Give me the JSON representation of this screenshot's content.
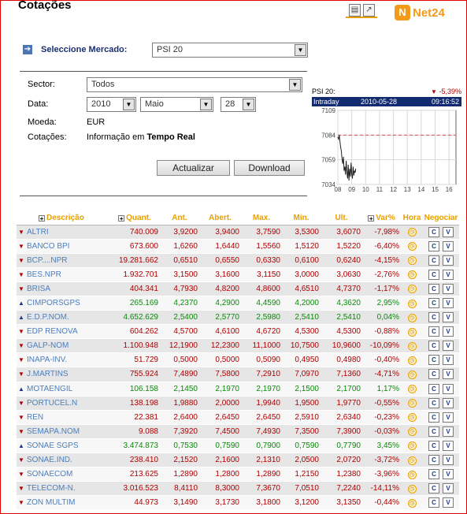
{
  "header": {
    "title": "Cotações",
    "brand": "Net24",
    "icon_print": "print-icon",
    "icon_export": "export-icon"
  },
  "market": {
    "label": "Seleccione Mercado:",
    "value": "PSI 20"
  },
  "filters": {
    "sector_label": "Sector:",
    "sector_value": "Todos",
    "date_label": "Data:",
    "year": "2010",
    "month": "Maio",
    "day": "28",
    "currency_label": "Moeda:",
    "currency_value": "EUR",
    "quotes_label": "Cotações:",
    "quotes_text": "Informação em",
    "quotes_strong": "Tempo Real"
  },
  "buttons": {
    "refresh": "Actualizar",
    "download": "Download"
  },
  "mini_chart": {
    "index_name": "PSI 20:",
    "change": "-5,39%",
    "mode": "Intraday",
    "date": "2010-05-28",
    "time": "09:16:52",
    "colors": {
      "down": "#c00000",
      "line": "#222222",
      "ref": "#e05050"
    },
    "chart_data": {
      "type": "line",
      "x_ticks": [
        "08",
        "09",
        "10",
        "11",
        "12",
        "13",
        "14",
        "15",
        "16"
      ],
      "y_ticks": [
        "7109",
        "7084",
        "7059",
        "7034"
      ],
      "ylim": [
        7034,
        7109
      ],
      "xlim": [
        8,
        16.5
      ],
      "reference_line": 7084,
      "series": [
        {
          "x": [
            8.0,
            8.05,
            8.1,
            8.15,
            8.2,
            8.25,
            8.3,
            8.35,
            8.4,
            8.45,
            8.5,
            8.55,
            8.6,
            8.65,
            8.7,
            8.75,
            8.8,
            8.85,
            8.9,
            8.95,
            9.0,
            9.05,
            9.1,
            9.15,
            9.2,
            9.25,
            9.28
          ],
          "y": [
            7082,
            7080,
            7084,
            7078,
            7072,
            7068,
            7060,
            7055,
            7062,
            7048,
            7052,
            7044,
            7058,
            7046,
            7040,
            7054,
            7038,
            7050,
            7042,
            7056,
            7045,
            7040,
            7052,
            7043,
            7048,
            7046,
            7050
          ]
        }
      ]
    }
  },
  "table": {
    "headers": {
      "desc": "Descrição",
      "qty": "Quant.",
      "prev": "Ant.",
      "open": "Abert.",
      "max": "Max.",
      "min": "Min.",
      "last": "Ult.",
      "var": "Var%",
      "time": "Hora",
      "trade": "Negociar"
    },
    "buy_label": "C",
    "sell_label": "V",
    "colors": {
      "down": "#b00000",
      "up": "#0a8a0a",
      "up_icon": "#1a3b8c",
      "down_icon": "#b00000"
    },
    "rows": [
      {
        "name": "ALTRI",
        "dir": "down",
        "qty": "740.009",
        "prev": "3,9200",
        "open": "3,9400",
        "max": "3,7590",
        "min": "3,5300",
        "last": "3,6070",
        "var": "-7,98%"
      },
      {
        "name": "BANCO BPI",
        "dir": "down",
        "qty": "673.600",
        "prev": "1,6260",
        "open": "1,6440",
        "max": "1,5560",
        "min": "1,5120",
        "last": "1,5220",
        "var": "-6,40%"
      },
      {
        "name": "BCP....NPR",
        "dir": "down",
        "qty": "19.281.662",
        "prev": "0,6510",
        "open": "0,6550",
        "max": "0,6330",
        "min": "0,6100",
        "last": "0,6240",
        "var": "-4,15%"
      },
      {
        "name": "BES.NPR",
        "dir": "down",
        "qty": "1.932.701",
        "prev": "3,1500",
        "open": "3,1600",
        "max": "3,1150",
        "min": "3,0000",
        "last": "3,0630",
        "var": "-2,76%"
      },
      {
        "name": "BRISA",
        "dir": "down",
        "qty": "404.341",
        "prev": "4,7930",
        "open": "4,8200",
        "max": "4,8600",
        "min": "4,6510",
        "last": "4,7370",
        "var": "-1,17%"
      },
      {
        "name": "CIMPORSGPS",
        "dir": "up",
        "qty": "265.169",
        "prev": "4,2370",
        "open": "4,2900",
        "max": "4,4590",
        "min": "4,2000",
        "last": "4,3620",
        "var": "2,95%"
      },
      {
        "name": "E.D.P.NOM.",
        "dir": "up",
        "qty": "4.652.629",
        "prev": "2,5400",
        "open": "2,5770",
        "max": "2,5980",
        "min": "2,5410",
        "last": "2,5410",
        "var": "0,04%"
      },
      {
        "name": "EDP RENOVA",
        "dir": "down",
        "qty": "604.262",
        "prev": "4,5700",
        "open": "4,6100",
        "max": "4,6720",
        "min": "4,5300",
        "last": "4,5300",
        "var": "-0,88%"
      },
      {
        "name": "GALP-NOM",
        "dir": "down",
        "qty": "1.100.948",
        "prev": "12,1900",
        "open": "12,2300",
        "max": "11,1000",
        "min": "10,7500",
        "last": "10,9600",
        "var": "-10,09%"
      },
      {
        "name": "INAPA-INV.",
        "dir": "down",
        "qty": "51.729",
        "prev": "0,5000",
        "open": "0,5000",
        "max": "0,5090",
        "min": "0,4950",
        "last": "0,4980",
        "var": "-0,40%"
      },
      {
        "name": "J.MARTINS",
        "dir": "down",
        "qty": "755.924",
        "prev": "7,4890",
        "open": "7,5800",
        "max": "7,2910",
        "min": "7,0970",
        "last": "7,1360",
        "var": "-4,71%"
      },
      {
        "name": "MOTAENGIL",
        "dir": "up",
        "qty": "106.158",
        "prev": "2,1450",
        "open": "2,1970",
        "max": "2,1970",
        "min": "2,1500",
        "last": "2,1700",
        "var": "1,17%"
      },
      {
        "name": "PORTUCEL.N",
        "dir": "down",
        "qty": "138.198",
        "prev": "1,9880",
        "open": "2,0000",
        "max": "1,9940",
        "min": "1,9500",
        "last": "1,9770",
        "var": "-0,55%"
      },
      {
        "name": "REN",
        "dir": "down",
        "qty": "22.381",
        "prev": "2,6400",
        "open": "2,6450",
        "max": "2,6450",
        "min": "2,5910",
        "last": "2,6340",
        "var": "-0,23%"
      },
      {
        "name": "SEMAPA.NOM",
        "dir": "down",
        "qty": "9.088",
        "prev": "7,3920",
        "open": "7,4500",
        "max": "7,4930",
        "min": "7,3500",
        "last": "7,3900",
        "var": "-0,03%"
      },
      {
        "name": "SONAE SGPS",
        "dir": "up",
        "qty": "3.474.873",
        "prev": "0,7530",
        "open": "0,7590",
        "max": "0,7900",
        "min": "0,7590",
        "last": "0,7790",
        "var": "3,45%"
      },
      {
        "name": "SONAE.IND.",
        "dir": "down",
        "qty": "238.410",
        "prev": "2,1520",
        "open": "2,1600",
        "max": "2,1310",
        "min": "2,0500",
        "last": "2,0720",
        "var": "-3,72%"
      },
      {
        "name": "SONAECOM",
        "dir": "down",
        "qty": "213.625",
        "prev": "1,2890",
        "open": "1,2800",
        "max": "1,2890",
        "min": "1,2150",
        "last": "1,2380",
        "var": "-3,96%"
      },
      {
        "name": "TELECOM-N.",
        "dir": "down",
        "qty": "3.016.523",
        "prev": "8,4110",
        "open": "8,3000",
        "max": "7,3670",
        "min": "7,0510",
        "last": "7,2240",
        "var": "-14,11%"
      },
      {
        "name": "ZON MULTIM",
        "dir": "down",
        "qty": "44.973",
        "prev": "3,1490",
        "open": "3,1730",
        "max": "3,1800",
        "min": "3,1200",
        "last": "3,1350",
        "var": "-0,44%"
      }
    ]
  }
}
